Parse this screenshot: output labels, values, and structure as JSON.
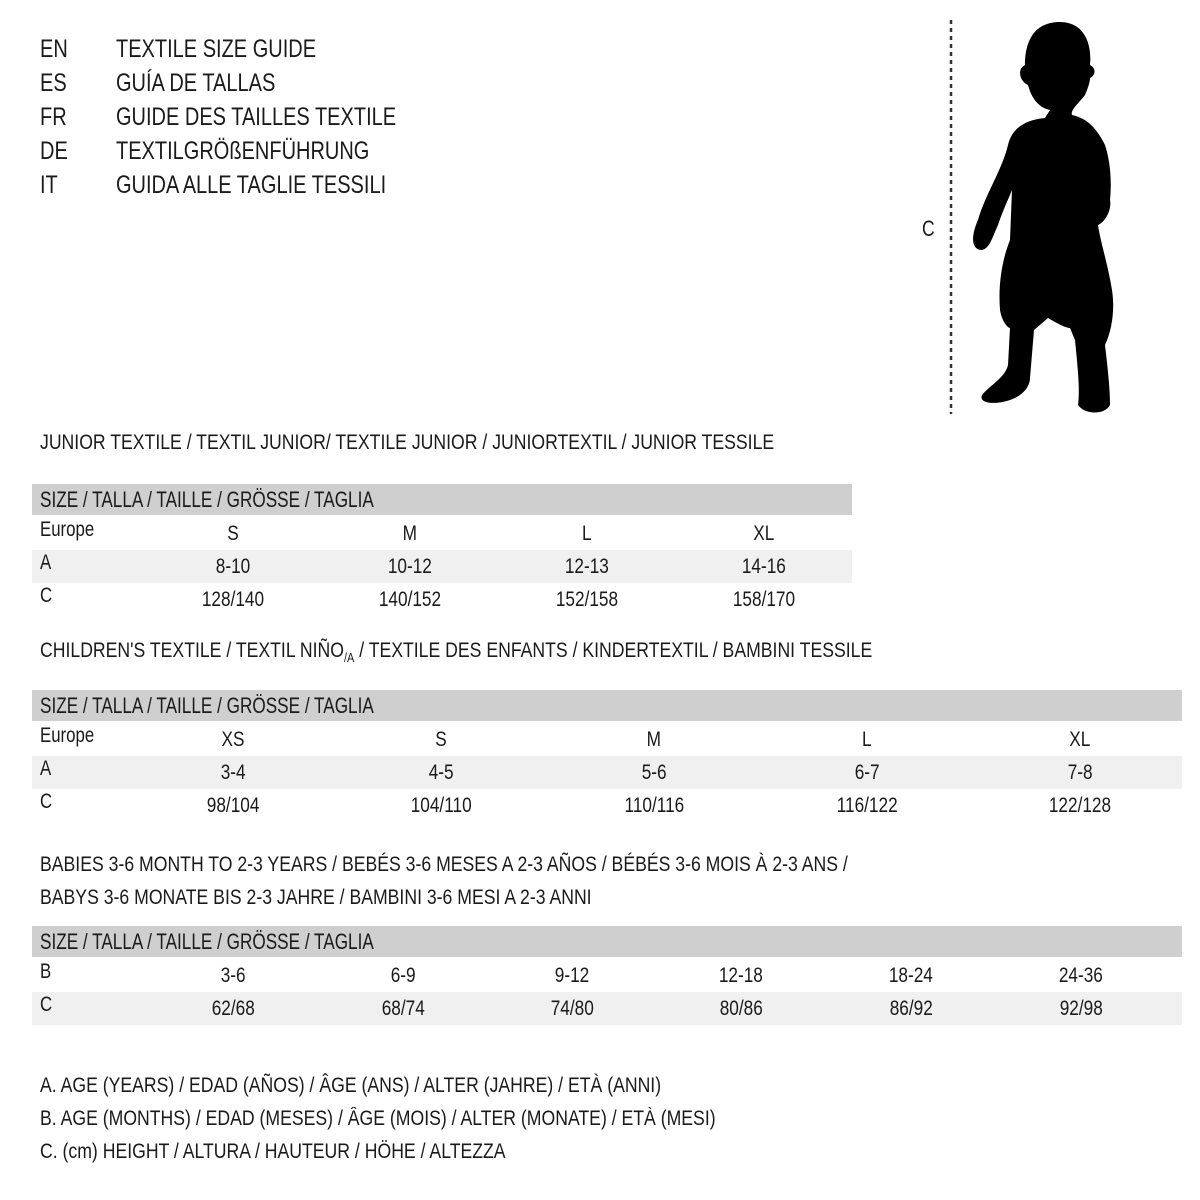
{
  "guide_titles": [
    {
      "lang": "EN",
      "text": "TEXTILE SIZE GUIDE"
    },
    {
      "lang": "ES",
      "text": "GUÍA DE TALLAS"
    },
    {
      "lang": "FR",
      "text": "GUIDE DES TAILLES TEXTILE"
    },
    {
      "lang": "DE",
      "text": "TEXTILGRÖßENFÜHRUNG"
    },
    {
      "lang": "IT",
      "text": "GUIDA ALLE TAGLIE TESSILI"
    }
  ],
  "figure": {
    "measure_label": "C",
    "icon": "child-silhouette-icon"
  },
  "colors": {
    "header_bg": "#cfcfcf",
    "stripe_bg": "#f0f0f0",
    "text": "#1a1a1a"
  },
  "junior": {
    "title": "JUNIOR TEXTILE / TEXTIL JUNIOR/ TEXTILE JUNIOR / JUNIORTEXTIL / JUNIOR TESSILE",
    "header": "SIZE / TALLA / TAILLE / GRÖSSE / TAGLIA",
    "rows": [
      {
        "label": "Europe",
        "values": [
          "S",
          "M",
          "L",
          "XL"
        ]
      },
      {
        "label": "A",
        "values": [
          "8-10",
          "10-12",
          "12-13",
          "14-16"
        ]
      },
      {
        "label": "C",
        "values": [
          "128/140",
          "140/152",
          "152/158",
          "158/170"
        ]
      }
    ]
  },
  "children": {
    "title_pre": "CHILDREN'S TEXTILE / TEXTIL NIÑO",
    "title_sub": "/A",
    "title_post": " / TEXTILE DES ENFANTS / KINDERTEXTIL / BAMBINI TESSILE",
    "header": "SIZE / TALLA / TAILLE / GRÖSSE / TAGLIA",
    "rows": [
      {
        "label": "Europe",
        "values": [
          "XS",
          "S",
          "M",
          "L",
          "XL"
        ]
      },
      {
        "label": "A",
        "values": [
          "3-4",
          "4-5",
          "5-6",
          "6-7",
          "7-8"
        ]
      },
      {
        "label": "C",
        "values": [
          "98/104",
          "104/110",
          "110/116",
          "116/122",
          "122/128"
        ]
      }
    ]
  },
  "babies": {
    "title_line1": "BABIES 3-6 MONTH TO 2-3 YEARS / BEBÉS 3-6 MESES A 2-3 AÑOS / BÉBÉS 3-6 MOIS À 2-3 ANS /",
    "title_line2": "BABYS 3-6 MONATE BIS 2-3 JAHRE / BAMBINI 3-6 MESI A 2-3 ANNI",
    "header": "SIZE / TALLA / TAILLE / GRÖSSE / TAGLIA",
    "rows": [
      {
        "label": "B",
        "values": [
          "3-6",
          "6-9",
          "9-12",
          "12-18",
          "18-24",
          "24-36"
        ]
      },
      {
        "label": "C",
        "values": [
          "62/68",
          "68/74",
          "74/80",
          "80/86",
          "86/92",
          "92/98"
        ]
      }
    ]
  },
  "legend": [
    "A. AGE (YEARS) / EDAD (AÑOS) / ÂGE (ANS) / ALTER (JAHRE) / ETÀ (ANNI)",
    "B. AGE (MONTHS) / EDAD (MESES) / ÂGE (MOIS) / ALTER (MONATE) / ETÀ (MESI)",
    "C. (cm) HEIGHT / ALTURA / HAUTEUR / HÖHE / ALTEZZA"
  ]
}
